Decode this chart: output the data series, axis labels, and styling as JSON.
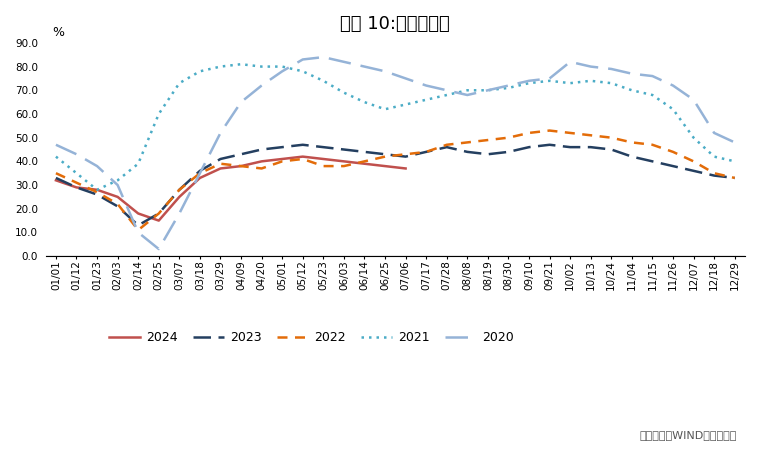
{
  "title": "图表 10:水泥发运率",
  "ylabel": "%",
  "source": "资料来源：WIND，兴业研究",
  "ylim": [
    0.0,
    90.0
  ],
  "yticks": [
    0.0,
    10.0,
    20.0,
    30.0,
    40.0,
    50.0,
    60.0,
    70.0,
    80.0,
    90.0
  ],
  "x_labels": [
    "01/01",
    "01/12",
    "01/23",
    "02/03",
    "02/14",
    "02/25",
    "03/07",
    "03/18",
    "03/29",
    "04/09",
    "04/20",
    "05/01",
    "05/12",
    "05/23",
    "06/03",
    "06/14",
    "06/25",
    "07/06",
    "07/17",
    "07/28",
    "08/08",
    "08/19",
    "08/30",
    "09/10",
    "09/21",
    "10/02",
    "10/13",
    "10/24",
    "11/04",
    "11/15",
    "11/26",
    "12/07",
    "12/18",
    "12/29"
  ],
  "series": {
    "2024": {
      "color": "#c0504d",
      "linewidth": 1.8,
      "values": [
        32,
        29,
        28,
        25,
        18,
        15,
        25,
        33,
        37,
        38,
        40,
        41,
        42,
        41,
        40,
        39,
        38,
        37,
        null,
        null,
        null,
        null,
        null,
        null,
        null,
        null,
        null,
        null,
        null,
        null,
        null,
        null,
        null,
        null
      ]
    },
    "2023": {
      "color": "#243f60",
      "linewidth": 1.8,
      "values": [
        33,
        29,
        26,
        21,
        13,
        18,
        28,
        36,
        41,
        43,
        45,
        46,
        47,
        46,
        45,
        44,
        43,
        42,
        44,
        46,
        44,
        43,
        44,
        46,
        47,
        46,
        46,
        45,
        42,
        40,
        38,
        36,
        34,
        33
      ]
    },
    "2022": {
      "color": "#e36c09",
      "linewidth": 1.8,
      "values": [
        35,
        31,
        27,
        22,
        11,
        18,
        28,
        35,
        39,
        38,
        37,
        40,
        41,
        38,
        38,
        40,
        42,
        43,
        44,
        47,
        48,
        49,
        50,
        52,
        53,
        52,
        51,
        50,
        48,
        47,
        44,
        40,
        35,
        33
      ]
    },
    "2021": {
      "color": "#4bacc6",
      "linewidth": 1.8,
      "values": [
        42,
        35,
        28,
        32,
        39,
        60,
        73,
        78,
        80,
        81,
        80,
        80,
        78,
        74,
        69,
        65,
        62,
        64,
        66,
        68,
        70,
        70,
        71,
        73,
        74,
        73,
        74,
        73,
        70,
        68,
        62,
        50,
        42,
        40
      ]
    },
    "2020": {
      "color": "#95b3d7",
      "linewidth": 1.8,
      "values": [
        47,
        43,
        38,
        30,
        10,
        3,
        18,
        35,
        52,
        65,
        72,
        78,
        83,
        84,
        82,
        80,
        78,
        75,
        72,
        70,
        68,
        70,
        72,
        74,
        75,
        82,
        80,
        79,
        77,
        76,
        72,
        66,
        52,
        48
      ]
    }
  },
  "legend_order": [
    "2024",
    "2023",
    "2022",
    "2021",
    "2020"
  ],
  "background_color": "#ffffff",
  "title_fontsize": 13,
  "tick_fontsize": 7.5,
  "legend_fontsize": 9,
  "source_fontsize": 8
}
